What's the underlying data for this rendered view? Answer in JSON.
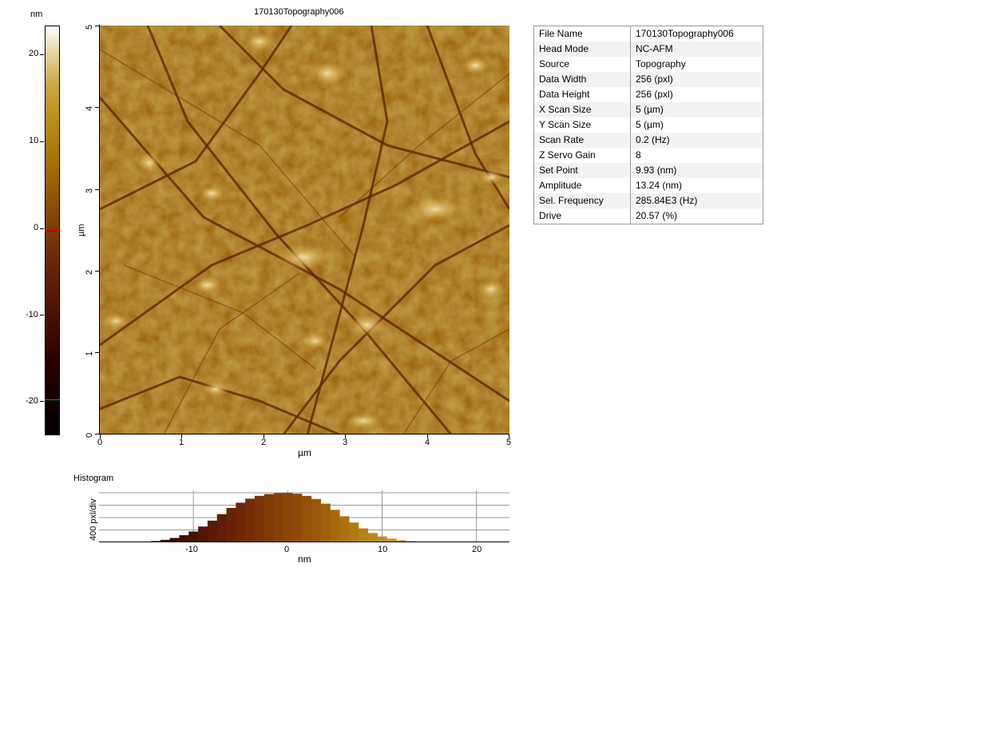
{
  "colorbar": {
    "unit": "nm",
    "ticks": [
      "20",
      "10",
      "0",
      "-10",
      "-20"
    ]
  },
  "image": {
    "title": "170130Topography006",
    "x_ticks": [
      "0",
      "1",
      "2",
      "3",
      "4",
      "5"
    ],
    "y_ticks": [
      "0",
      "1",
      "2",
      "3",
      "4",
      "5"
    ],
    "x_label": "µm",
    "y_label": "µm"
  },
  "info": {
    "rows": [
      {
        "key": "File Name",
        "value": "170130Topography006"
      },
      {
        "key": "Head Mode",
        "value": "NC-AFM"
      },
      {
        "key": "Source",
        "value": "Topography"
      },
      {
        "key": "Data Width",
        "value": "256 (pxl)"
      },
      {
        "key": "Data Height",
        "value": "256 (pxl)"
      },
      {
        "key": "X Scan Size",
        "value": "5 (µm)"
      },
      {
        "key": "Y Scan Size",
        "value": "5 (µm)"
      },
      {
        "key": "Scan Rate",
        "value": "0.2 (Hz)"
      },
      {
        "key": "Z Servo Gain",
        "value": "8"
      },
      {
        "key": "Set Point",
        "value": "9.93 (nm)"
      },
      {
        "key": "Amplitude",
        "value": "13.24 (nm)"
      },
      {
        "key": "Sel. Frequency",
        "value": "285.84E3 (Hz)"
      },
      {
        "key": "Drive",
        "value": "20.57 (%)"
      }
    ]
  },
  "histogram": {
    "label": "Histogram",
    "y_label": "400 pxl/div",
    "x_label": "nm",
    "x_ticks": [
      "-10",
      "0",
      "10",
      "20"
    ]
  },
  "chart_data": {
    "type": "bar",
    "title": "Histogram",
    "xlabel": "nm",
    "ylabel": "400 pxl/div",
    "xlim": [
      -20,
      23.5
    ],
    "ylim": [
      0,
      1600
    ],
    "x": [
      -15,
      -14,
      -13,
      -12,
      -11,
      -10,
      -9,
      -8,
      -7,
      -6,
      -5,
      -4,
      -3,
      -2,
      -1,
      0,
      1,
      2,
      3,
      4,
      5,
      6,
      7,
      8,
      9,
      10,
      11,
      12,
      13,
      14,
      15,
      16
    ],
    "values": [
      20,
      40,
      80,
      140,
      230,
      350,
      510,
      700,
      910,
      1110,
      1280,
      1410,
      1500,
      1560,
      1590,
      1600,
      1570,
      1500,
      1400,
      1250,
      1050,
      840,
      640,
      450,
      300,
      190,
      120,
      70,
      40,
      20,
      10,
      5
    ]
  }
}
